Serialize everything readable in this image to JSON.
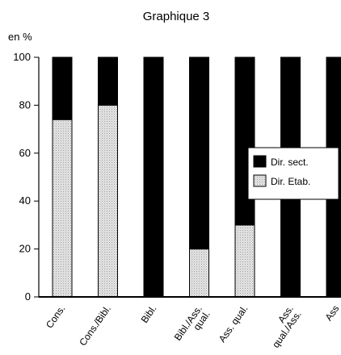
{
  "chart_data": {
    "type": "bar",
    "stacked": true,
    "title": "Graphique 3",
    "ylabel": "en %",
    "xlabel": "",
    "ylim": [
      0,
      100
    ],
    "yticks": [
      0,
      20,
      40,
      60,
      80,
      100
    ],
    "categories": [
      "Cons.",
      "Cons./Bibl.",
      "Bibl.",
      "Bibl./Ass. qual.",
      "Ass. qual.",
      "Ass. qual./Ass.",
      "Ass"
    ],
    "series": [
      {
        "name": "Dir. Etab.",
        "color": "#d9d9d9",
        "values": [
          74,
          80,
          0,
          20,
          30,
          0,
          0
        ]
      },
      {
        "name": "Dir. sect.",
        "color": "#000000",
        "values": [
          26,
          20,
          100,
          80,
          70,
          100,
          100
        ]
      }
    ],
    "legend_position": "right",
    "grid": false
  }
}
